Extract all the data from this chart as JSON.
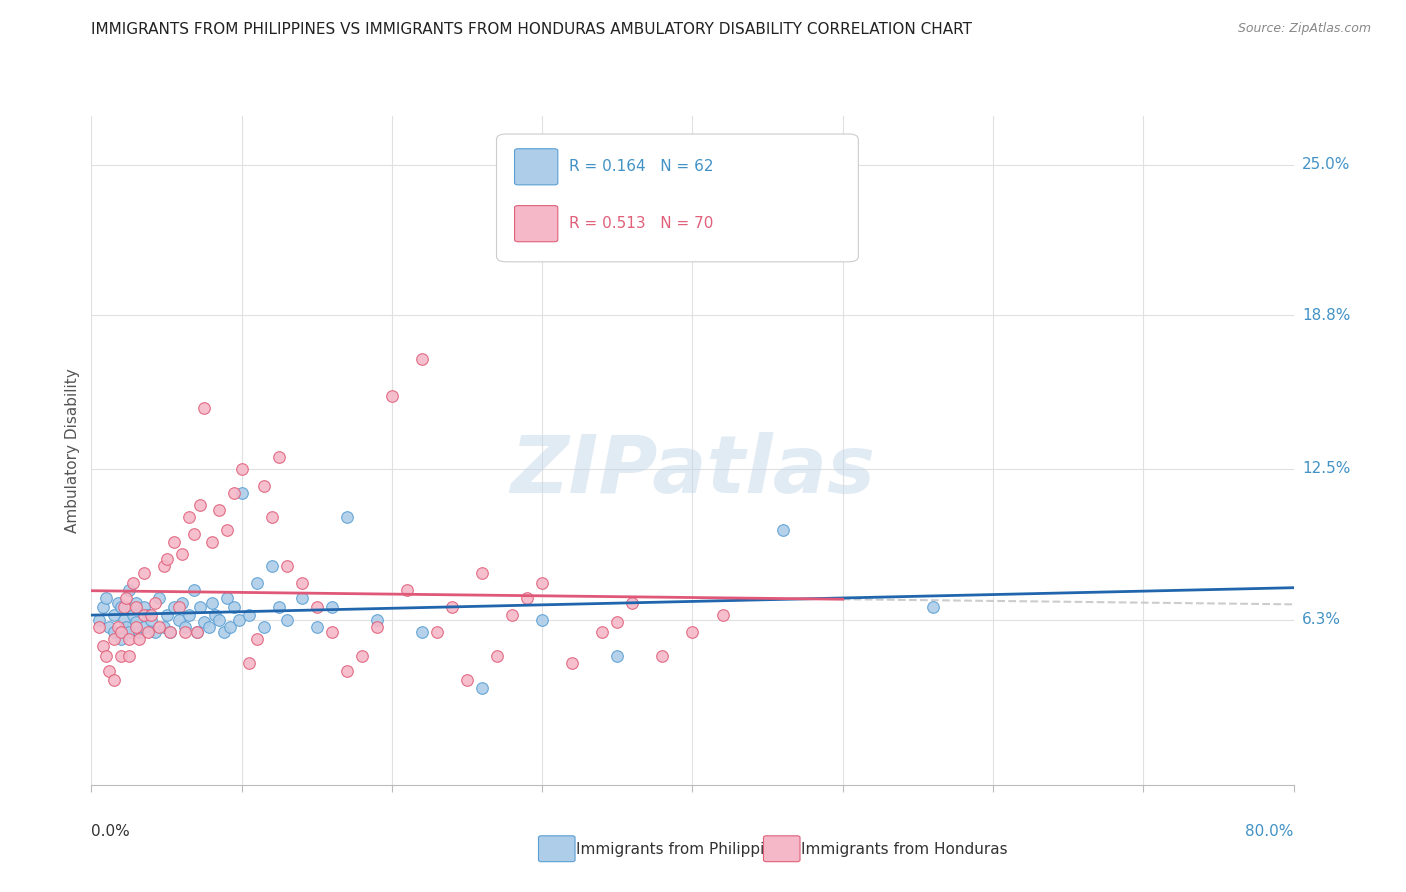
{
  "title": "IMMIGRANTS FROM PHILIPPINES VS IMMIGRANTS FROM HONDURAS AMBULATORY DISABILITY CORRELATION CHART",
  "source": "Source: ZipAtlas.com",
  "ylabel": "Ambulatory Disability",
  "ytick_labels": [
    "6.3%",
    "12.5%",
    "18.8%",
    "25.0%"
  ],
  "ytick_values": [
    0.063,
    0.125,
    0.188,
    0.25
  ],
  "xmin": 0.0,
  "xmax": 0.8,
  "ymin": -0.005,
  "ymax": 0.27,
  "philippines_color": "#aecde8",
  "philippines_edge": "#5a9fd4",
  "honduras_color": "#f4b8c8",
  "honduras_edge": "#e0607a",
  "philippines_line_color": "#2166ac",
  "honduras_line_color": "#e05878",
  "dash_color": "#cccccc",
  "philippines_R": 0.164,
  "philippines_N": 62,
  "honduras_R": 0.513,
  "honduras_N": 70,
  "legend_label_philippines": "Immigrants from Philippines",
  "legend_label_honduras": "Immigrants from Honduras",
  "philippines_scatter_x": [
    0.005,
    0.008,
    0.01,
    0.012,
    0.015,
    0.015,
    0.018,
    0.02,
    0.02,
    0.022,
    0.023,
    0.025,
    0.025,
    0.028,
    0.03,
    0.03,
    0.032,
    0.035,
    0.035,
    0.038,
    0.04,
    0.042,
    0.045,
    0.048,
    0.05,
    0.052,
    0.055,
    0.058,
    0.06,
    0.062,
    0.065,
    0.068,
    0.07,
    0.072,
    0.075,
    0.078,
    0.08,
    0.082,
    0.085,
    0.088,
    0.09,
    0.092,
    0.095,
    0.098,
    0.1,
    0.105,
    0.11,
    0.115,
    0.12,
    0.125,
    0.13,
    0.14,
    0.15,
    0.16,
    0.17,
    0.19,
    0.22,
    0.26,
    0.3,
    0.35,
    0.46,
    0.56
  ],
  "philippines_scatter_y": [
    0.063,
    0.068,
    0.072,
    0.06,
    0.065,
    0.058,
    0.07,
    0.055,
    0.068,
    0.063,
    0.06,
    0.075,
    0.058,
    0.065,
    0.062,
    0.07,
    0.058,
    0.06,
    0.068,
    0.065,
    0.063,
    0.058,
    0.072,
    0.06,
    0.065,
    0.058,
    0.068,
    0.063,
    0.07,
    0.06,
    0.065,
    0.075,
    0.058,
    0.068,
    0.062,
    0.06,
    0.07,
    0.065,
    0.063,
    0.058,
    0.072,
    0.06,
    0.068,
    0.063,
    0.115,
    0.065,
    0.078,
    0.06,
    0.085,
    0.068,
    0.063,
    0.072,
    0.06,
    0.068,
    0.105,
    0.063,
    0.058,
    0.035,
    0.063,
    0.048,
    0.1,
    0.068
  ],
  "honduras_scatter_x": [
    0.005,
    0.008,
    0.01,
    0.012,
    0.015,
    0.015,
    0.018,
    0.02,
    0.02,
    0.022,
    0.023,
    0.025,
    0.025,
    0.028,
    0.03,
    0.03,
    0.032,
    0.035,
    0.035,
    0.038,
    0.04,
    0.042,
    0.045,
    0.048,
    0.05,
    0.052,
    0.055,
    0.058,
    0.06,
    0.062,
    0.065,
    0.068,
    0.07,
    0.072,
    0.075,
    0.08,
    0.085,
    0.09,
    0.095,
    0.1,
    0.105,
    0.11,
    0.115,
    0.12,
    0.125,
    0.13,
    0.14,
    0.15,
    0.16,
    0.17,
    0.18,
    0.19,
    0.2,
    0.21,
    0.22,
    0.23,
    0.24,
    0.25,
    0.26,
    0.27,
    0.28,
    0.29,
    0.3,
    0.32,
    0.34,
    0.35,
    0.36,
    0.38,
    0.4,
    0.42
  ],
  "honduras_scatter_y": [
    0.06,
    0.052,
    0.048,
    0.042,
    0.055,
    0.038,
    0.06,
    0.048,
    0.058,
    0.068,
    0.072,
    0.055,
    0.048,
    0.078,
    0.06,
    0.068,
    0.055,
    0.065,
    0.082,
    0.058,
    0.065,
    0.07,
    0.06,
    0.085,
    0.088,
    0.058,
    0.095,
    0.068,
    0.09,
    0.058,
    0.105,
    0.098,
    0.058,
    0.11,
    0.15,
    0.095,
    0.108,
    0.1,
    0.115,
    0.125,
    0.045,
    0.055,
    0.118,
    0.105,
    0.13,
    0.085,
    0.078,
    0.068,
    0.058,
    0.042,
    0.048,
    0.06,
    0.155,
    0.075,
    0.17,
    0.058,
    0.068,
    0.038,
    0.082,
    0.048,
    0.065,
    0.072,
    0.078,
    0.045,
    0.058,
    0.062,
    0.07,
    0.048,
    0.058,
    0.065
  ],
  "watermark_text": "ZIPatlas",
  "background_color": "#ffffff",
  "grid_color": "#e0e0e0"
}
